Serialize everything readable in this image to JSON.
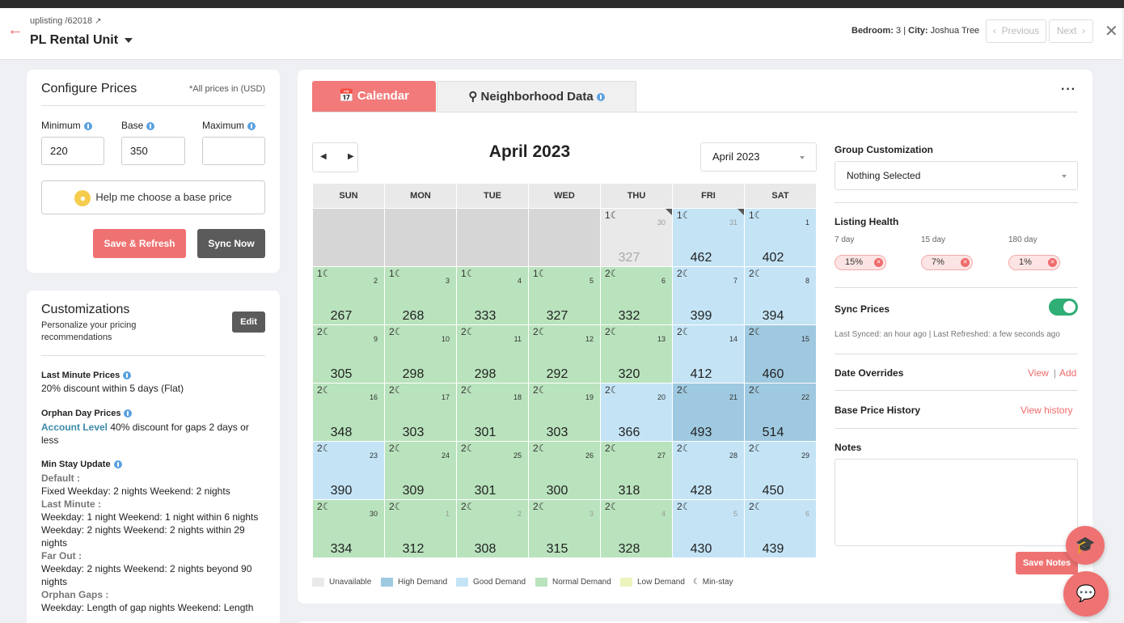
{
  "header": {
    "breadcrumb": "uplisting /62018",
    "unit_name": "PL Rental Unit",
    "bedroom_label": "Bedroom:",
    "bedroom_value": "3",
    "city_label": "City:",
    "city_value": "Joshua Tree",
    "prev_label": "Previous",
    "next_label": "Next"
  },
  "configure": {
    "title": "Configure Prices",
    "currency_note": "*All prices in (USD)",
    "min_label": "Minimum",
    "base_label": "Base",
    "max_label": "Maximum",
    "min_value": "220",
    "base_value": "350",
    "max_value": "",
    "help_label": "Help me choose a base price",
    "save_label": "Save & Refresh",
    "sync_label": "Sync Now"
  },
  "customizations": {
    "title": "Customizations",
    "subtitle": "Personalize your pricing recommendations",
    "edit_label": "Edit",
    "last_minute_title": "Last Minute Prices",
    "last_minute_text": "20% discount within 5 days (Flat)",
    "orphan_title": "Orphan Day Prices",
    "orphan_account": "Account Level",
    "orphan_text": "40% discount for gaps 2 days or less",
    "minstay_title": "Min Stay Update",
    "default_label": "Default :",
    "default_text": "Fixed Weekday: 2 nights Weekend: 2 nights",
    "lastmin_label": "Last Minute :",
    "lastmin_text1": "Weekday: 1 night Weekend: 1 night within 6 nights",
    "lastmin_text2": "Weekday: 2 nights Weekend: 2 nights within 29 nights",
    "farout_label": "Far Out :",
    "farout_text": "Weekday: 2 nights Weekend: 2 nights beyond 90 nights",
    "orphan_gaps_label": "Orphan Gaps :",
    "orphan_gaps_text": "Weekday: Length of gap nights Weekend: Length"
  },
  "tabs": {
    "calendar": "Calendar",
    "neighborhood": "Neighborhood Data"
  },
  "calendar": {
    "month_title": "April 2023",
    "month_select": "April 2023",
    "days": [
      "SUN",
      "MON",
      "TUE",
      "WED",
      "THU",
      "FRI",
      "SAT"
    ],
    "colors": {
      "unavail": "#d6d6d6",
      "unavail_light": "#e9e9e9",
      "high": "#9fc9e0",
      "good": "#c4e4f6",
      "normal": "#b9e3bd",
      "low": "#eef4bd"
    },
    "cells": [
      {
        "day": "",
        "price": "",
        "state": "unavail"
      },
      {
        "day": "",
        "price": "",
        "state": "unavail"
      },
      {
        "day": "",
        "price": "",
        "state": "unavail"
      },
      {
        "day": "",
        "price": "",
        "state": "unavail"
      },
      {
        "day": "30",
        "price": "327",
        "state": "unavail_light",
        "moon": "1☾",
        "faded": true,
        "flag": true
      },
      {
        "day": "31",
        "price": "462",
        "state": "good",
        "moon": "1☾",
        "faded": true,
        "flag": true
      },
      {
        "day": "1",
        "price": "402",
        "state": "good",
        "moon": "1☾"
      },
      {
        "day": "2",
        "price": "267",
        "state": "normal",
        "moon": "1☾"
      },
      {
        "day": "3",
        "price": "268",
        "state": "normal",
        "moon": "1☾"
      },
      {
        "day": "4",
        "price": "333",
        "state": "normal",
        "moon": "1☾"
      },
      {
        "day": "5",
        "price": "327",
        "state": "normal",
        "moon": "1☾"
      },
      {
        "day": "6",
        "price": "332",
        "state": "normal",
        "moon": "2☾"
      },
      {
        "day": "7",
        "price": "399",
        "state": "good",
        "moon": "2☾"
      },
      {
        "day": "8",
        "price": "394",
        "state": "good",
        "moon": "2☾"
      },
      {
        "day": "9",
        "price": "305",
        "state": "normal",
        "moon": "2☾"
      },
      {
        "day": "10",
        "price": "298",
        "state": "normal",
        "moon": "2☾"
      },
      {
        "day": "11",
        "price": "298",
        "state": "normal",
        "moon": "2☾"
      },
      {
        "day": "12",
        "price": "292",
        "state": "normal",
        "moon": "2☾"
      },
      {
        "day": "13",
        "price": "320",
        "state": "normal",
        "moon": "2☾"
      },
      {
        "day": "14",
        "price": "412",
        "state": "good",
        "moon": "2☾"
      },
      {
        "day": "15",
        "price": "460",
        "state": "high",
        "moon": "2☾"
      },
      {
        "day": "16",
        "price": "348",
        "state": "normal",
        "moon": "2☾"
      },
      {
        "day": "17",
        "price": "303",
        "state": "normal",
        "moon": "2☾"
      },
      {
        "day": "18",
        "price": "301",
        "state": "normal",
        "moon": "2☾"
      },
      {
        "day": "19",
        "price": "303",
        "state": "normal",
        "moon": "2☾"
      },
      {
        "day": "20",
        "price": "366",
        "state": "good",
        "moon": "2☾"
      },
      {
        "day": "21",
        "price": "493",
        "state": "high",
        "moon": "2☾"
      },
      {
        "day": "22",
        "price": "514",
        "state": "high",
        "moon": "2☾"
      },
      {
        "day": "23",
        "price": "390",
        "state": "good",
        "moon": "2☾"
      },
      {
        "day": "24",
        "price": "309",
        "state": "normal",
        "moon": "2☾"
      },
      {
        "day": "25",
        "price": "301",
        "state": "normal",
        "moon": "2☾"
      },
      {
        "day": "26",
        "price": "300",
        "state": "normal",
        "moon": "2☾"
      },
      {
        "day": "27",
        "price": "318",
        "state": "normal",
        "moon": "2☾"
      },
      {
        "day": "28",
        "price": "428",
        "state": "good",
        "moon": "2☾"
      },
      {
        "day": "29",
        "price": "450",
        "state": "good",
        "moon": "2☾"
      },
      {
        "day": "30",
        "price": "334",
        "state": "normal",
        "moon": "2☾"
      },
      {
        "day": "1",
        "price": "312",
        "state": "normal",
        "moon": "2☾",
        "faded": true
      },
      {
        "day": "2",
        "price": "308",
        "state": "normal",
        "moon": "2☾",
        "faded": true
      },
      {
        "day": "3",
        "price": "315",
        "state": "normal",
        "moon": "2☾",
        "faded": true
      },
      {
        "day": "4",
        "price": "328",
        "state": "normal",
        "moon": "2☾",
        "faded": true
      },
      {
        "day": "5",
        "price": "430",
        "state": "good",
        "moon": "2☾",
        "faded": true
      },
      {
        "day": "6",
        "price": "439",
        "state": "good",
        "moon": "2☾",
        "faded": true
      }
    ],
    "legend": {
      "unavailable": "Unavailable",
      "high": "High Demand",
      "good": "Good Demand",
      "normal": "Normal Demand",
      "low": "Low Demand",
      "minstay": "Min-stay"
    }
  },
  "right": {
    "group_label": "Group Customization",
    "group_value": "Nothing Selected",
    "health_label": "Listing Health",
    "h7_label": "7 day",
    "h15_label": "15 day",
    "h180_label": "180 day",
    "h7_value": "15%",
    "h15_value": "7%",
    "h180_value": "1%",
    "sync_label": "Sync Prices",
    "sync_on": true,
    "synced_text": "Last Synced: an hour ago | Last Refreshed: a few seconds ago",
    "overrides_label": "Date Overrides",
    "view_label": "View",
    "sep": "|",
    "add_label": "Add",
    "history_label": "Base Price History",
    "history_link": "View history",
    "notes_label": "Notes",
    "save_notes": "Save Notes"
  }
}
